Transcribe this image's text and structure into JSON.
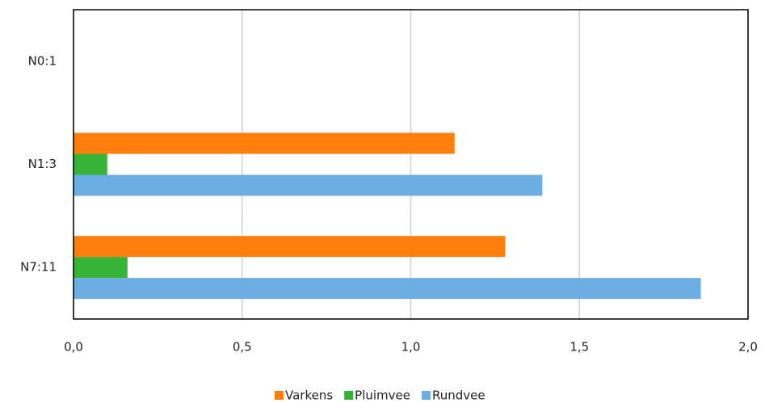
{
  "chart_data": {
    "type": "hbar",
    "categories": [
      "N0:1",
      "N1:3",
      "N7:11"
    ],
    "series": [
      {
        "name": "Varkens",
        "color": "#ff7f0e",
        "values": [
          0,
          1.13,
          1.28
        ]
      },
      {
        "name": "Pluimvee",
        "color": "#37b337",
        "values": [
          0,
          0.1,
          0.16
        ]
      },
      {
        "name": "Rundvee",
        "color": "#6aaee3",
        "values": [
          0,
          1.39,
          1.86
        ]
      }
    ],
    "xlim": [
      0,
      2
    ],
    "xticks": [
      {
        "value": 0,
        "label": "0,0"
      },
      {
        "value": 0.5,
        "label": "0,5"
      },
      {
        "value": 1,
        "label": "1,0"
      },
      {
        "value": 1.5,
        "label": "1,5"
      },
      {
        "value": 2,
        "label": "2,0"
      }
    ],
    "grid": true,
    "legend": "bottom"
  }
}
